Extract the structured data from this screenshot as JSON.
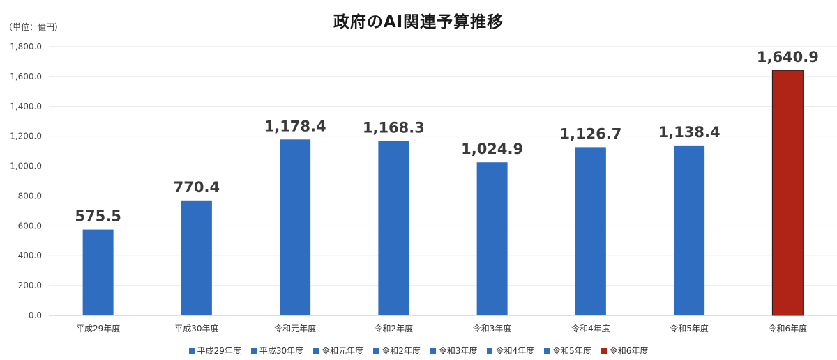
{
  "chart_data": {
    "type": "bar",
    "title": "政府のAI関連予算推移",
    "unit_label": "（単位：億円）",
    "categories": [
      "平成29年度",
      "平成30年度",
      "令和元年度",
      "令和2年度",
      "令和3年度",
      "令和4年度",
      "令和5年度",
      "令和6年度"
    ],
    "values": [
      575.5,
      770.4,
      1178.4,
      1168.3,
      1024.9,
      1126.7,
      1138.4,
      1640.9
    ],
    "value_labels": [
      "575.5",
      "770.4",
      "1,178.4",
      "1,168.3",
      "1,024.9",
      "1,126.7",
      "1,138.4",
      "1,640.9"
    ],
    "ylim": [
      0,
      1800
    ],
    "yticks": [
      "0.0",
      "200.0",
      "400.0",
      "600.0",
      "800.0",
      "1,000.0",
      "1,200.0",
      "1,400.0",
      "1,600.0",
      "1,800.0"
    ],
    "grid": true,
    "legend_position": "bottom",
    "bar_colors": [
      "#2e6dbf",
      "#2e6dbf",
      "#2e6dbf",
      "#2e6dbf",
      "#2e6dbf",
      "#2e6dbf",
      "#2e6dbf",
      "#b02418"
    ],
    "highlight_border": "#1a1a1a"
  }
}
